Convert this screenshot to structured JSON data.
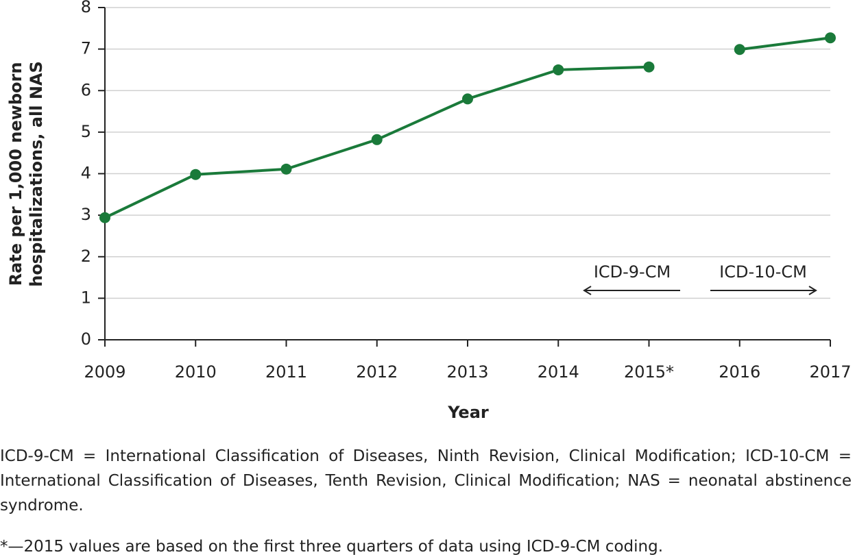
{
  "chart_data": {
    "type": "line",
    "categories": [
      "2009",
      "2010",
      "2011",
      "2012",
      "2013",
      "2014",
      "2015*",
      "2016",
      "2017"
    ],
    "series": [
      {
        "name": "ICD-9-CM",
        "color": "#1a7a3a",
        "values": [
          2.94,
          3.98,
          4.11,
          4.82,
          5.8,
          6.5,
          6.57,
          null,
          null
        ]
      },
      {
        "name": "ICD-10-CM",
        "color": "#1a7a3a",
        "values": [
          null,
          null,
          null,
          null,
          null,
          null,
          null,
          6.99,
          7.27
        ]
      }
    ],
    "ylim": [
      0,
      8
    ],
    "yticks": [
      0,
      1,
      2,
      3,
      4,
      5,
      6,
      7,
      8
    ],
    "grid": true,
    "xlabel": "Year",
    "ylabel": [
      "Rate per 1,000 newborn",
      "hospitalizations, all NAS"
    ],
    "notes": [
      "ICD-9-CM = International Classification of Diseases, Ninth Revision, Clinical Modification; ICD-10-CM = International Classification of Diseases, Tenth Revision, Clinical Modification; NAS = neonatal abstinence syndrome.",
      "*—2015 values are based on the first three quarters of data using ICD-9-CM coding."
    ]
  }
}
